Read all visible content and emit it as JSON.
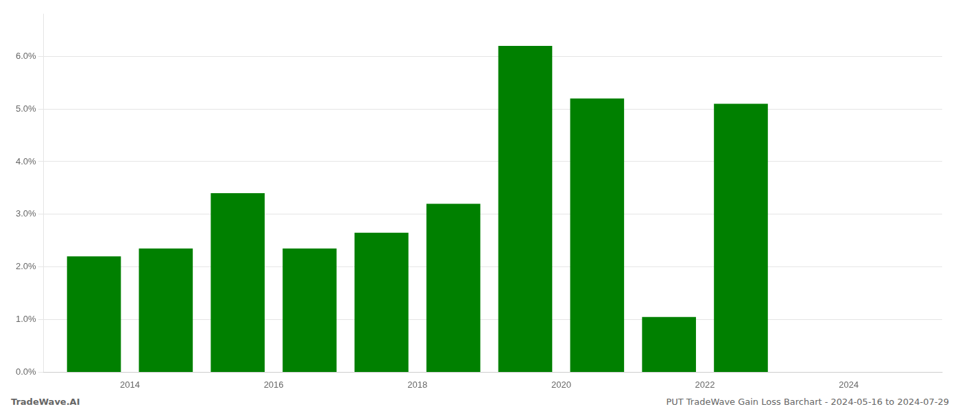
{
  "chart_data": {
    "type": "bar",
    "x": [
      2013,
      2014,
      2015,
      2016,
      2017,
      2018,
      2019,
      2020,
      2021,
      2022,
      2023
    ],
    "values": [
      0.022,
      0.0235,
      0.034,
      0.0235,
      0.0265,
      0.032,
      0.062,
      0.052,
      0.0105,
      0.051,
      0.0
    ],
    "color": "#008000",
    "xlim": [
      2012.3,
      2024.8
    ],
    "xticks": [
      {
        "value": 2013.5,
        "label": "2014"
      },
      {
        "value": 2015.5,
        "label": "2016"
      },
      {
        "value": 2017.5,
        "label": "2018"
      },
      {
        "value": 2019.5,
        "label": "2020"
      },
      {
        "value": 2021.5,
        "label": "2022"
      },
      {
        "value": 2023.5,
        "label": "2024"
      }
    ],
    "ylim": [
      0,
      0.068
    ],
    "yticks": [
      {
        "value": 0.0,
        "label": "0.0%"
      },
      {
        "value": 0.01,
        "label": "1.0%"
      },
      {
        "value": 0.02,
        "label": "2.0%"
      },
      {
        "value": 0.03,
        "label": "3.0%"
      },
      {
        "value": 0.04,
        "label": "4.0%"
      },
      {
        "value": 0.05,
        "label": "5.0%"
      },
      {
        "value": 0.06,
        "label": "6.0%"
      }
    ],
    "grid": true,
    "annotations": [
      "TradeWave.AI",
      "PUT TradeWave Gain Loss Barchart - 2024-05-16 to 2024-07-29"
    ]
  }
}
